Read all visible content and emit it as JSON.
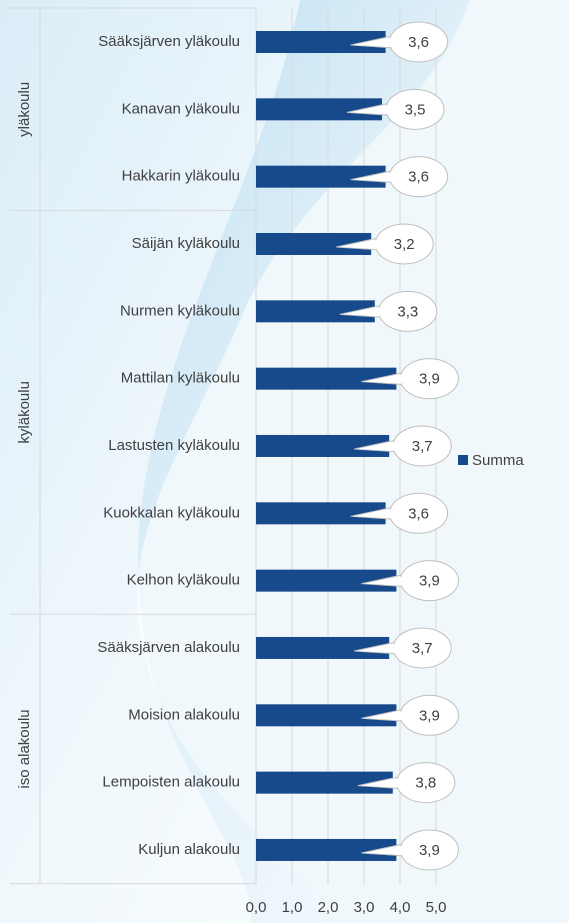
{
  "chart_data": {
    "type": "bar",
    "orientation": "horizontal",
    "groups": [
      {
        "name": "yläkoulu",
        "categories": [
          "Sääksjärven yläkoulu",
          "Kanavan yläkoulu",
          "Hakkarin yläkoulu"
        ]
      },
      {
        "name": "kyläkoulu",
        "categories": [
          "Säijän kyläkoulu",
          "Nurmen kyläkoulu",
          "Mattilan kyläkoulu",
          "Lastusten kyläkoulu",
          "Kuokkalan kyläkoulu",
          "Kelhon kyläkoulu"
        ]
      },
      {
        "name": "iso alakoulu",
        "categories": [
          "Sääksjärven alakoulu",
          "Moision alakoulu",
          "Lempoisten alakoulu",
          "Kuljun alakoulu"
        ]
      }
    ],
    "series": [
      {
        "name": "Summa",
        "color": "#174a8b",
        "values": [
          3.6,
          3.5,
          3.6,
          3.2,
          3.3,
          3.9,
          3.7,
          3.6,
          3.9,
          3.7,
          3.9,
          3.8,
          3.9
        ],
        "value_labels": [
          "3,6",
          "3,5",
          "3,6",
          "3,2",
          "3,3",
          "3,9",
          "3,7",
          "3,6",
          "3,9",
          "3,7",
          "3,9",
          "3,8",
          "3,9"
        ]
      }
    ],
    "xlim": [
      0,
      5
    ],
    "xticks": [
      {
        "value": 0,
        "label": "0,0"
      },
      {
        "value": 1,
        "label": "1,0"
      },
      {
        "value": 2,
        "label": "2,0"
      },
      {
        "value": 3,
        "label": "3,0"
      },
      {
        "value": 4,
        "label": "4,0"
      },
      {
        "value": 5,
        "label": "5,0"
      }
    ],
    "grid": true,
    "legend": "right"
  }
}
